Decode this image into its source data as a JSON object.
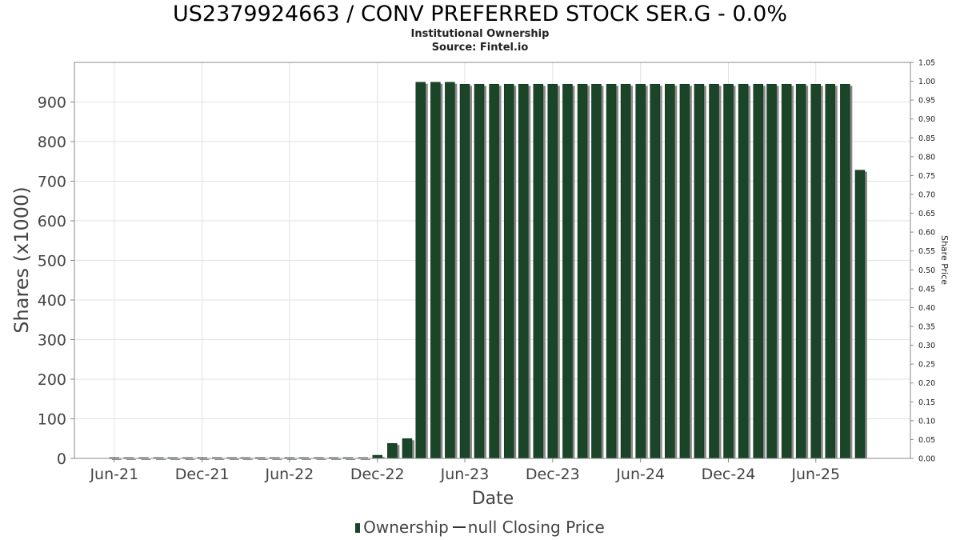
{
  "header": {
    "title": "US2379924663 / CONV PREFERRED STOCK SER.G - 0.0%",
    "subtitle": "Institutional Ownership",
    "source": "Source: Fintel.io"
  },
  "legend": {
    "ownership_label": "Ownership",
    "price_label": "null Closing Price"
  },
  "colors": {
    "bar": "#1a4528",
    "bar_shadow": "#8a8a8a",
    "grid": "#e2e2e2",
    "axis": "#888888"
  },
  "chart_data": {
    "type": "bar",
    "xlabel": "Date",
    "ylabel": "Shares (x1000)",
    "y2label": "Share Price",
    "ylim": [
      0,
      1000
    ],
    "yticks": [
      0,
      100,
      200,
      300,
      400,
      500,
      600,
      700,
      800,
      900
    ],
    "y2lim": [
      0,
      1.05
    ],
    "y2ticks": [
      "0.00",
      "0.05",
      "0.10",
      "0.15",
      "0.20",
      "0.25",
      "0.30",
      "0.35",
      "0.40",
      "0.45",
      "0.50",
      "0.55",
      "0.60",
      "0.65",
      "0.70",
      "0.75",
      "0.80",
      "0.85",
      "0.90",
      "0.95",
      "1.00",
      "1.05"
    ],
    "xlim": [
      "2021-03-10",
      "2025-12-15"
    ],
    "xticks": [
      {
        "label": "Jun-21",
        "date": "2021-06-01"
      },
      {
        "label": "Dec-21",
        "date": "2021-12-01"
      },
      {
        "label": "Jun-22",
        "date": "2022-06-01"
      },
      {
        "label": "Dec-22",
        "date": "2022-12-01"
      },
      {
        "label": "Jun-23",
        "date": "2023-06-01"
      },
      {
        "label": "Dec-23",
        "date": "2023-12-01"
      },
      {
        "label": "Jun-24",
        "date": "2024-06-01"
      },
      {
        "label": "Dec-24",
        "date": "2024-12-01"
      },
      {
        "label": "Jun-25",
        "date": "2025-06-01"
      }
    ],
    "grid": true,
    "legend_position": "bottom",
    "x": [
      "2021-06-01",
      "2021-07-01",
      "2021-08-01",
      "2021-09-01",
      "2021-10-01",
      "2021-11-01",
      "2021-12-01",
      "2022-01-01",
      "2022-02-01",
      "2022-03-01",
      "2022-04-01",
      "2022-05-01",
      "2022-06-01",
      "2022-07-01",
      "2022-08-01",
      "2022-09-01",
      "2022-10-01",
      "2022-11-01",
      "2022-12-01",
      "2023-01-01",
      "2023-02-01",
      "2023-03-01",
      "2023-04-01",
      "2023-05-01",
      "2023-06-01",
      "2023-07-01",
      "2023-08-01",
      "2023-09-01",
      "2023-10-01",
      "2023-11-01",
      "2023-12-01",
      "2024-01-01",
      "2024-02-01",
      "2024-03-01",
      "2024-04-01",
      "2024-05-01",
      "2024-06-01",
      "2024-07-01",
      "2024-08-01",
      "2024-09-01",
      "2024-10-01",
      "2024-11-01",
      "2024-12-01",
      "2025-01-01",
      "2025-02-01",
      "2025-03-01",
      "2025-04-01",
      "2025-05-01",
      "2025-06-01",
      "2025-07-01",
      "2025-08-01",
      "2025-09-01"
    ],
    "series": [
      {
        "name": "Ownership",
        "values": [
          2,
          2,
          2,
          2,
          2,
          2,
          2,
          2,
          2,
          2,
          2,
          2,
          2,
          2,
          2,
          2,
          2,
          2,
          8,
          38,
          50,
          950,
          950,
          950,
          945,
          945,
          945,
          945,
          945,
          945,
          945,
          945,
          945,
          945,
          945,
          945,
          945,
          945,
          945,
          945,
          945,
          945,
          945,
          945,
          945,
          945,
          945,
          945,
          945,
          945,
          945,
          728
        ]
      }
    ]
  }
}
